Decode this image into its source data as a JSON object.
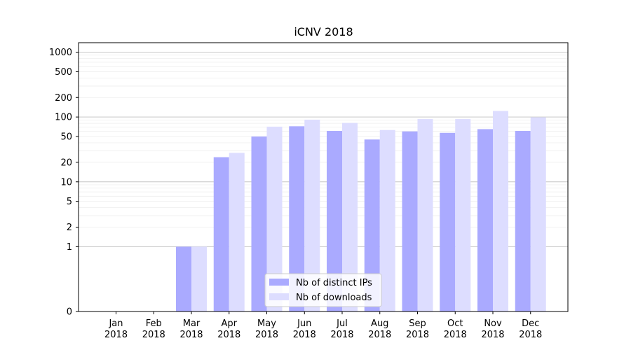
{
  "chart_data": {
    "type": "bar",
    "title": "iCNV 2018",
    "scale": "symlog",
    "categories": [
      [
        "Jan",
        "2018"
      ],
      [
        "Feb",
        "2018"
      ],
      [
        "Mar",
        "2018"
      ],
      [
        "Apr",
        "2018"
      ],
      [
        "May",
        "2018"
      ],
      [
        "Jun",
        "2018"
      ],
      [
        "Jul",
        "2018"
      ],
      [
        "Aug",
        "2018"
      ],
      [
        "Sep",
        "2018"
      ],
      [
        "Oct",
        "2018"
      ],
      [
        "Nov",
        "2018"
      ],
      [
        "Dec",
        "2018"
      ]
    ],
    "series": [
      {
        "name": "Nb of distinct IPs",
        "color": "#aaaaff",
        "values": [
          0,
          0,
          1,
          24,
          50,
          72,
          61,
          45,
          60,
          57,
          65,
          61
        ]
      },
      {
        "name": "Nb of downloads",
        "color": "#ddddff",
        "values": [
          0,
          0,
          1,
          28,
          71,
          91,
          81,
          63,
          93,
          93,
          124,
          99
        ]
      }
    ],
    "yticks": [
      0,
      1,
      2,
      5,
      10,
      20,
      50,
      100,
      200,
      500,
      1000
    ],
    "ylim": [
      0,
      1400
    ],
    "grid": true,
    "legend": "lower-center"
  }
}
